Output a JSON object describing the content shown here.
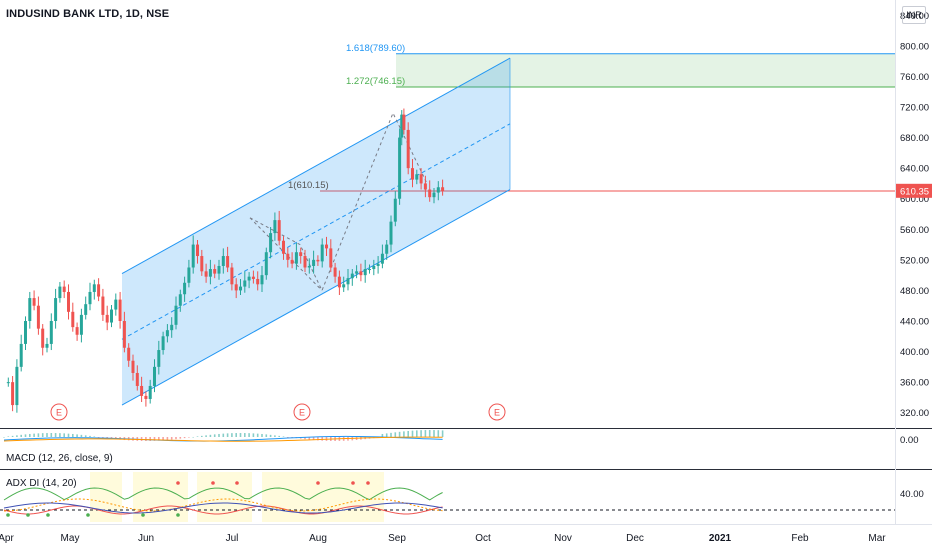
{
  "header": {
    "symbol": "INDUSIND BANK LTD, 1D, NSE",
    "currency": "INR"
  },
  "panes": {
    "macd_label": "MACD (12, 26, close, 9)",
    "adx_label": "ADX DI (14, 20)"
  },
  "colors": {
    "up": "#26a69a",
    "down": "#ef5350",
    "channel": "#2196f3",
    "fib": "#4caf50"
  },
  "chart_data": {
    "type": "candlestick",
    "y_axis_ticks": [
      "840.00",
      "800.00",
      "760.00",
      "720.00",
      "680.00",
      "640.00",
      "600.00",
      "560.00",
      "520.00",
      "480.00",
      "440.00",
      "400.00",
      "360.00",
      "320.00"
    ],
    "ylim": [
      300,
      860
    ],
    "x_axis_labels": [
      "Apr",
      "May",
      "Jun",
      "Jul",
      "Aug",
      "Sep",
      "Oct",
      "Nov",
      "Dec",
      "2021",
      "Feb",
      "Mar"
    ],
    "last_price": "610.35",
    "annotations": {
      "fib_1618": "1.618(789.60)",
      "fib_1272": "1.272(746.15)",
      "fib_1": "1(610.15)",
      "earnings_marker": "E"
    },
    "macd": {
      "label": "MACD (12, 26, close, 9)",
      "axis_tick": "0.00"
    },
    "adx": {
      "label": "ADX DI (14, 20)",
      "axis_tick": "40.00"
    },
    "series": [
      {
        "name": "price",
        "points": [
          [
            2,
            360
          ],
          [
            4,
            330
          ],
          [
            6,
            380
          ],
          [
            8,
            410
          ],
          [
            10,
            440
          ],
          [
            12,
            470
          ],
          [
            14,
            460
          ],
          [
            16,
            430
          ],
          [
            18,
            405
          ],
          [
            20,
            410
          ],
          [
            22,
            440
          ],
          [
            24,
            470
          ],
          [
            26,
            485
          ],
          [
            28,
            478
          ],
          [
            30,
            452
          ],
          [
            32,
            432
          ],
          [
            34,
            422
          ],
          [
            36,
            448
          ],
          [
            38,
            462
          ],
          [
            40,
            478
          ],
          [
            42,
            488
          ],
          [
            44,
            472
          ],
          [
            46,
            448
          ],
          [
            48,
            438
          ],
          [
            50,
            455
          ],
          [
            52,
            468
          ],
          [
            54,
            440
          ],
          [
            56,
            405
          ],
          [
            58,
            388
          ],
          [
            60,
            372
          ],
          [
            62,
            355
          ],
          [
            64,
            342
          ],
          [
            66,
            338
          ],
          [
            68,
            355
          ],
          [
            70,
            380
          ],
          [
            72,
            402
          ],
          [
            74,
            420
          ],
          [
            76,
            428
          ],
          [
            78,
            435
          ],
          [
            80,
            460
          ],
          [
            82,
            475
          ],
          [
            84,
            490
          ],
          [
            86,
            510
          ],
          [
            88,
            540
          ],
          [
            90,
            525
          ],
          [
            92,
            505
          ],
          [
            94,
            498
          ],
          [
            96,
            508
          ],
          [
            98,
            502
          ],
          [
            100,
            512
          ],
          [
            102,
            525
          ],
          [
            104,
            510
          ],
          [
            106,
            488
          ],
          [
            108,
            480
          ],
          [
            110,
            485
          ],
          [
            112,
            493
          ],
          [
            114,
            498
          ],
          [
            116,
            495
          ],
          [
            118,
            488
          ],
          [
            120,
            500
          ],
          [
            122,
            530
          ],
          [
            124,
            555
          ],
          [
            126,
            572
          ],
          [
            128,
            545
          ],
          [
            130,
            528
          ],
          [
            132,
            520
          ],
          [
            134,
            515
          ],
          [
            136,
            530
          ],
          [
            138,
            525
          ],
          [
            140,
            510
          ],
          [
            142,
            512
          ],
          [
            144,
            520
          ],
          [
            146,
            518
          ],
          [
            148,
            540
          ],
          [
            150,
            535
          ],
          [
            152,
            510
          ],
          [
            154,
            498
          ],
          [
            156,
            484
          ],
          [
            158,
            488
          ],
          [
            160,
            496
          ],
          [
            162,
            502
          ],
          [
            164,
            505
          ],
          [
            166,
            500
          ],
          [
            168,
            508
          ],
          [
            170,
            508
          ],
          [
            172,
            512
          ],
          [
            174,
            515
          ],
          [
            176,
            528
          ],
          [
            178,
            540
          ],
          [
            180,
            570
          ],
          [
            182,
            600
          ],
          [
            184,
            680
          ],
          [
            185,
            710
          ],
          [
            186,
            690
          ],
          [
            188,
            640
          ],
          [
            190,
            625
          ],
          [
            192,
            632
          ],
          [
            194,
            620
          ],
          [
            196,
            612
          ],
          [
            198,
            602
          ],
          [
            200,
            608
          ],
          [
            202,
            615
          ],
          [
            204,
            610
          ]
        ]
      }
    ]
  }
}
